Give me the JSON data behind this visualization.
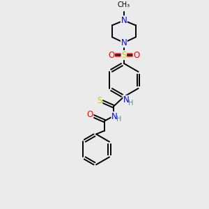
{
  "background_color": "#ebebeb",
  "C": "#000000",
  "N": "#0000ff",
  "O": "#ff0000",
  "S": "#cccc00",
  "H": "#4a8f8f",
  "lw": 1.4,
  "fs": 8.5
}
